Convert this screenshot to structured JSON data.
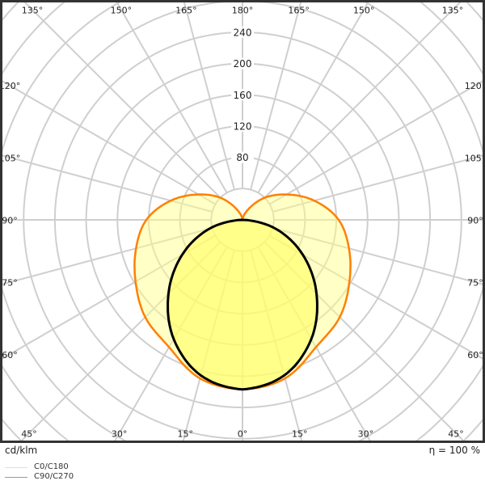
{
  "chart_data": {
    "type": "polar",
    "unit_label": "cd/klm",
    "efficiency_label": "η = 100 %",
    "radial_ticks": [
      80,
      120,
      160,
      200,
      240
    ],
    "radial_grid_step": 40,
    "angle_step_deg": 15,
    "angle_labels_top": [
      "135°",
      "150°",
      "165°",
      "180°",
      "165°",
      "150°",
      "135°"
    ],
    "angle_labels_side": [
      "120°",
      "105°",
      "90°",
      "75°",
      "60°"
    ],
    "angle_labels_bottom": [
      "45°",
      "30°",
      "15°",
      "0°",
      "15°",
      "30°",
      "45°"
    ],
    "grid": true,
    "legend_placement": "bottom-left",
    "series": [
      {
        "name": "C0/C180",
        "color": "#ff8000",
        "legend_color": "#ffd9b0",
        "fill": "#ffff80",
        "gamma_deg": [
          0,
          15,
          30,
          45,
          60,
          75,
          90,
          105,
          120,
          135,
          150,
          165,
          180
        ],
        "intensity": [
          217,
          210,
          188,
          176,
          158,
          141,
          123,
          95,
          65,
          40,
          17,
          5,
          0
        ]
      },
      {
        "name": "C90/C270",
        "color": "#000000",
        "legend_color": "#999999",
        "fill": "#ffff60",
        "gamma_deg": [
          0,
          15,
          30,
          45,
          60,
          75,
          90
        ],
        "intensity": [
          217,
          206,
          176,
          134,
          89,
          44,
          0
        ]
      }
    ]
  }
}
